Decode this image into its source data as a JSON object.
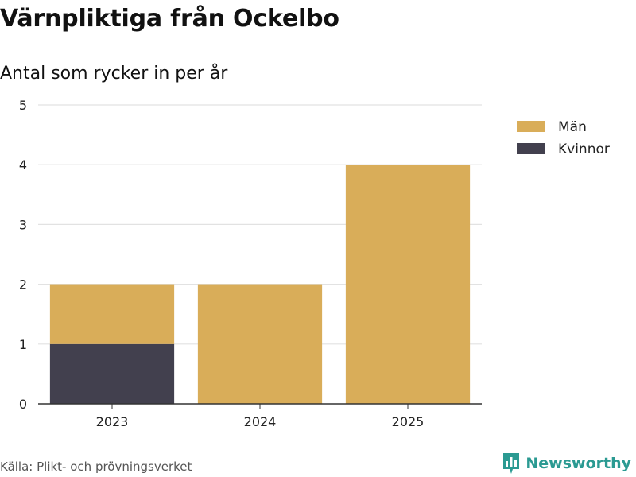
{
  "header": {
    "title": "Värnpliktiga från Ockelbo",
    "subtitle": "Antal som rycker in per år"
  },
  "footer": {
    "source": "Källa: Plikt- och prövningsverket",
    "brand": "Newsworthy"
  },
  "colors": {
    "man": "#d9ad59",
    "kvinnor": "#42404e",
    "grid": "#e2e2e2",
    "axis": "#333333",
    "brand": "#2b9a92"
  },
  "icons": {
    "brand_logo": "bar-chart-speech-bubble-icon"
  },
  "chart_data": {
    "type": "bar",
    "stacked": true,
    "categories": [
      "2023",
      "2024",
      "2025"
    ],
    "series": [
      {
        "name": "Kvinnor",
        "values": [
          1,
          0,
          0
        ]
      },
      {
        "name": "Män",
        "values": [
          1,
          2,
          4
        ]
      }
    ],
    "legend": [
      "Män",
      "Kvinnor"
    ],
    "legend_position": "top-right",
    "yticks": [
      0,
      1,
      2,
      3,
      4,
      5
    ],
    "ylim": [
      0,
      5
    ],
    "grid": true
  }
}
